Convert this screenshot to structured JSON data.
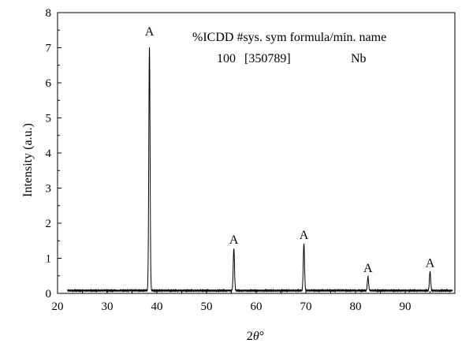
{
  "chart_data": {
    "type": "line",
    "xlabel_prefix": "2",
    "xlabel_symbol": "θ",
    "xlabel_suffix": "°",
    "ylabel": "Intensity (a.u.)",
    "xlim": [
      20,
      100
    ],
    "ylim": [
      0,
      8
    ],
    "x_ticks": [
      20,
      30,
      40,
      50,
      60,
      70,
      80,
      90
    ],
    "y_ticks": [
      0,
      1,
      2,
      3,
      4,
      5,
      6,
      7,
      8
    ],
    "grid": false,
    "legend": {
      "header": "%ICDD #sys. sym formula/min. name",
      "percent": "100",
      "code": "[350789]",
      "phase": "Nb"
    },
    "baseline": 0.08,
    "peaks": [
      {
        "x": 38.5,
        "y": 7.0,
        "label": "A"
      },
      {
        "x": 55.5,
        "y": 1.28,
        "label": "A"
      },
      {
        "x": 69.6,
        "y": 1.42,
        "label": "A"
      },
      {
        "x": 82.5,
        "y": 0.47,
        "label": "A"
      },
      {
        "x": 95.0,
        "y": 0.62,
        "label": "A"
      }
    ],
    "top_label": "A"
  }
}
